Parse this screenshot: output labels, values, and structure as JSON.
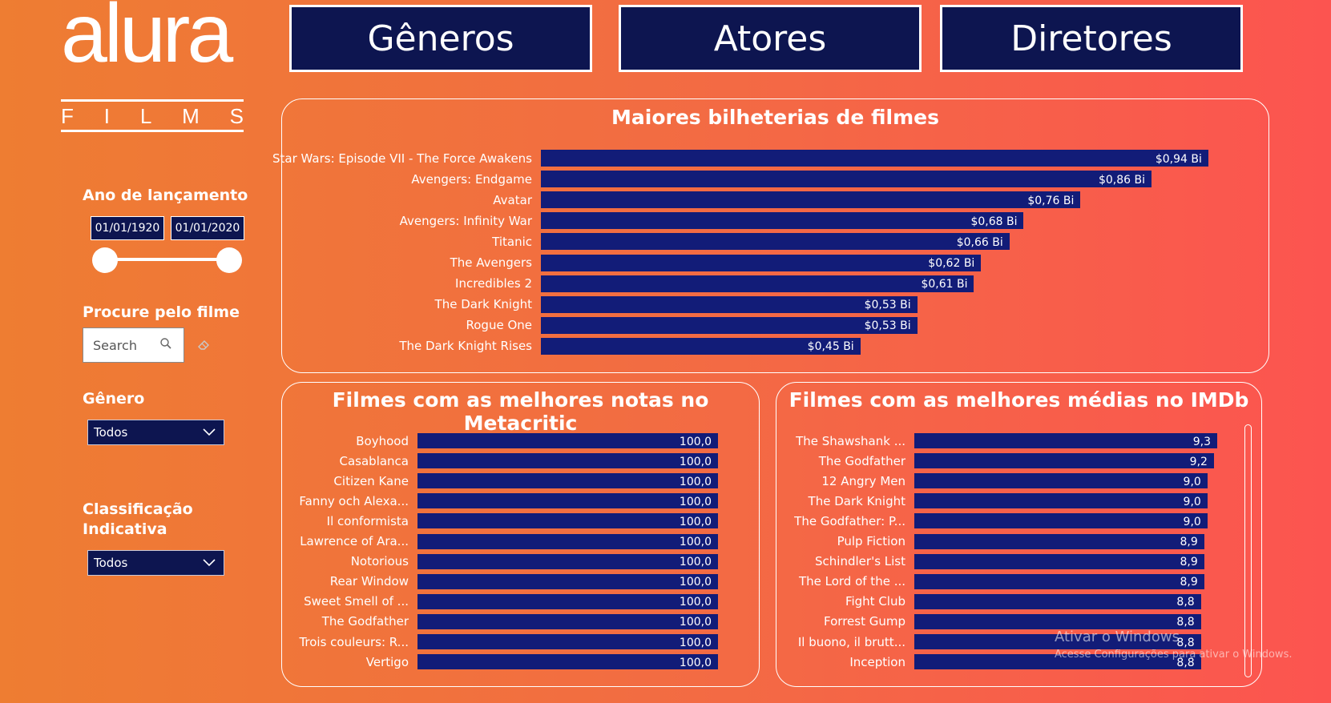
{
  "brand": {
    "name": "alura",
    "sub": [
      "F",
      "I",
      "L",
      "M",
      "S"
    ]
  },
  "nav": [
    {
      "label": "Gêneros"
    },
    {
      "label": "Atores"
    },
    {
      "label": "Diretores"
    }
  ],
  "filters": {
    "release_year": {
      "label": "Ano de lançamento",
      "start": "01/01/1920",
      "end": "01/01/2020"
    },
    "search": {
      "label": "Procure pelo filme",
      "placeholder": "Search"
    },
    "genre": {
      "label": "Gênero",
      "value": "Todos"
    },
    "rating": {
      "label_line1": "Classificação",
      "label_line2": "Indicativa",
      "value": "Todos"
    }
  },
  "colors": {
    "bar": "#121c78",
    "nav_bg": "#0d1550"
  },
  "watermark": {
    "line1": "Ativar o Windows",
    "line2": "Acesse Configurações para ativar o Windows."
  },
  "chart_data": [
    {
      "type": "bar",
      "orientation": "horizontal",
      "title": "Maiores bilheterias de filmes",
      "categories": [
        "Star Wars: Episode VII - The Force Awakens",
        "Avengers: Endgame",
        "Avatar",
        "Avengers: Infinity War",
        "Titanic",
        "The Avengers",
        "Incredibles 2",
        "The Dark Knight",
        "Rogue One",
        "The Dark Knight Rises"
      ],
      "values": [
        0.94,
        0.86,
        0.76,
        0.68,
        0.66,
        0.62,
        0.61,
        0.53,
        0.53,
        0.45
      ],
      "value_labels": [
        "$0,94 Bi",
        "$0,86 Bi",
        "$0,76 Bi",
        "$0,68 Bi",
        "$0,66 Bi",
        "$0,62 Bi",
        "$0,61 Bi",
        "$0,53 Bi",
        "$0,53 Bi",
        "$0,45 Bi"
      ]
    },
    {
      "type": "bar",
      "orientation": "horizontal",
      "title": "Filmes com as melhores notas no Metacritic",
      "categories": [
        "Boyhood",
        "Casablanca",
        "Citizen Kane",
        "Fanny och Alexa...",
        "Il conformista",
        "Lawrence of Ara...",
        "Notorious",
        "Rear Window",
        "Sweet Smell of ...",
        "The Godfather",
        "Trois couleurs: R...",
        "Vertigo"
      ],
      "values": [
        100,
        100,
        100,
        100,
        100,
        100,
        100,
        100,
        100,
        100,
        100,
        100
      ],
      "value_labels": [
        "100,0",
        "100,0",
        "100,0",
        "100,0",
        "100,0",
        "100,0",
        "100,0",
        "100,0",
        "100,0",
        "100,0",
        "100,0",
        "100,0"
      ]
    },
    {
      "type": "bar",
      "orientation": "horizontal",
      "title": "Filmes com as melhores médias no IMDb",
      "categories": [
        "The Shawshank ...",
        "The Godfather",
        "12 Angry Men",
        "The Dark Knight",
        "The Godfather: P...",
        "Pulp Fiction",
        "Schindler's List",
        "The Lord of the ...",
        "Fight Club",
        "Forrest Gump",
        "Il buono, il brutt...",
        "Inception"
      ],
      "values": [
        9.3,
        9.2,
        9.0,
        9.0,
        9.0,
        8.9,
        8.9,
        8.9,
        8.8,
        8.8,
        8.8,
        8.8
      ],
      "value_labels": [
        "9,3",
        "9,2",
        "9,0",
        "9,0",
        "9,0",
        "8,9",
        "8,9",
        "8,9",
        "8,8",
        "8,8",
        "8,8",
        "8,8"
      ]
    }
  ]
}
